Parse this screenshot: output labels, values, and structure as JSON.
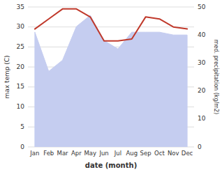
{
  "chart_data": {
    "type": "line",
    "categories": [
      "Jan",
      "Feb",
      "Mar",
      "Apr",
      "May",
      "Jun",
      "Jul",
      "Aug",
      "Sep",
      "Oct",
      "Nov",
      "Dec"
    ],
    "series": [
      {
        "type": "area",
        "axis": "y2",
        "color": "#c5cdf0",
        "values": [
          41.0,
          27.0,
          31.0,
          43.0,
          47.0,
          38.0,
          35.0,
          41.0,
          41.0,
          41.0,
          40.0,
          40.0
        ]
      },
      {
        "type": "line",
        "color": "#c0392b",
        "values": [
          29.5,
          32.0,
          34.5,
          34.5,
          32.5,
          26.5,
          26.5,
          27.0,
          32.5,
          32.0,
          30.0,
          29.5
        ]
      }
    ],
    "xlabel": "date (month)",
    "ylabel": "max temp (C)",
    "y2label": "med. precipitation (kg/m2)",
    "ylim": [
      0,
      35
    ],
    "yticks": [
      0,
      5,
      10,
      15,
      20,
      25,
      30,
      35
    ],
    "y2lim": [
      0,
      50
    ],
    "y2ticks": [
      0,
      10,
      20,
      30,
      40,
      50
    ],
    "grid": true
  }
}
